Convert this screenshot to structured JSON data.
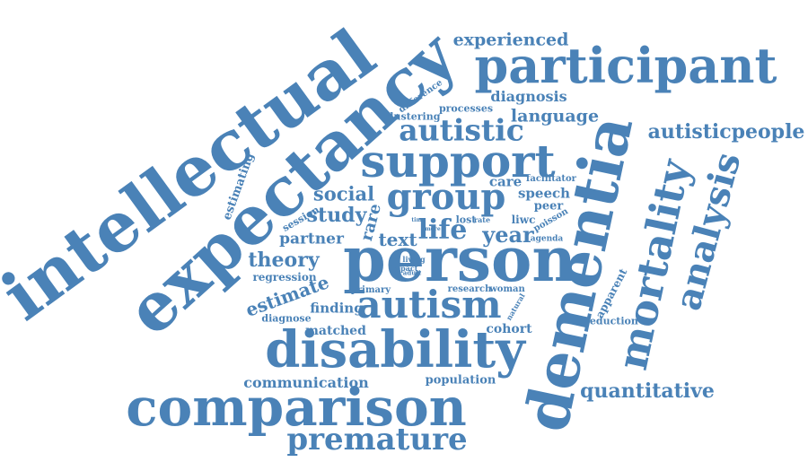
{
  "color": "#4a82b7",
  "words": [
    {
      "id": "intellectual",
      "text": "intellectual"
    },
    {
      "id": "expectancy",
      "text": "expectancy"
    },
    {
      "id": "dementia",
      "text": "dementia"
    },
    {
      "id": "participant",
      "text": "participant"
    },
    {
      "id": "person",
      "text": "person"
    },
    {
      "id": "comparison",
      "text": "comparison"
    },
    {
      "id": "disability",
      "text": "disability"
    },
    {
      "id": "support",
      "text": "support"
    },
    {
      "id": "mortality",
      "text": "mortality"
    },
    {
      "id": "analysis",
      "text": "analysis"
    },
    {
      "id": "autism",
      "text": "autism"
    },
    {
      "id": "group",
      "text": "group"
    },
    {
      "id": "premature",
      "text": "premature"
    },
    {
      "id": "autistic",
      "text": "autistic"
    },
    {
      "id": "autisticpeople",
      "text": "autisticpeople"
    },
    {
      "id": "quantitative",
      "text": "quantitative"
    },
    {
      "id": "experienced",
      "text": "experienced"
    },
    {
      "id": "language",
      "text": "language"
    },
    {
      "id": "diagnosis",
      "text": "diagnosis"
    },
    {
      "id": "social",
      "text": "social"
    },
    {
      "id": "study",
      "text": "study"
    },
    {
      "id": "life",
      "text": "life"
    },
    {
      "id": "year",
      "text": "year"
    },
    {
      "id": "theory",
      "text": "theory"
    },
    {
      "id": "estimate",
      "text": "estimate"
    },
    {
      "id": "partner",
      "text": "partner"
    },
    {
      "id": "text",
      "text": "text"
    },
    {
      "id": "matched",
      "text": "matched"
    },
    {
      "id": "finding",
      "text": "finding"
    },
    {
      "id": "communication",
      "text": "communication"
    },
    {
      "id": "population",
      "text": "population"
    },
    {
      "id": "cohort",
      "text": "cohort"
    },
    {
      "id": "speech",
      "text": "speech"
    },
    {
      "id": "care",
      "text": "care"
    },
    {
      "id": "rare",
      "text": "rare"
    },
    {
      "id": "estimating",
      "text": "estimating"
    },
    {
      "id": "session",
      "text": "session"
    },
    {
      "id": "regression",
      "text": "regression"
    },
    {
      "id": "diagnose",
      "text": "diagnose"
    },
    {
      "id": "processes",
      "text": "processes"
    },
    {
      "id": "clustering",
      "text": "clustering"
    },
    {
      "id": "difference",
      "text": "difference"
    },
    {
      "id": "facilitator",
      "text": "facilitator"
    },
    {
      "id": "peer",
      "text": "peer"
    },
    {
      "id": "liwc",
      "text": "liwc"
    },
    {
      "id": "poisson",
      "text": "poisson"
    },
    {
      "id": "agenda",
      "text": "agenda"
    },
    {
      "id": "lost",
      "text": "lost"
    },
    {
      "id": "rate",
      "text": "rate"
    },
    {
      "id": "research",
      "text": "research"
    },
    {
      "id": "woman",
      "text": "woman"
    },
    {
      "id": "primary",
      "text": "primary"
    },
    {
      "id": "impact",
      "text": "impact"
    },
    {
      "id": "living",
      "text": "living"
    },
    {
      "id": "adult",
      "text": "adult"
    },
    {
      "id": "natural",
      "text": "natural"
    },
    {
      "id": "apparent",
      "text": "apparent"
    },
    {
      "id": "reduction",
      "text": "reduction"
    },
    {
      "id": "more",
      "text": "more"
    },
    {
      "id": "time",
      "text": "time"
    }
  ]
}
